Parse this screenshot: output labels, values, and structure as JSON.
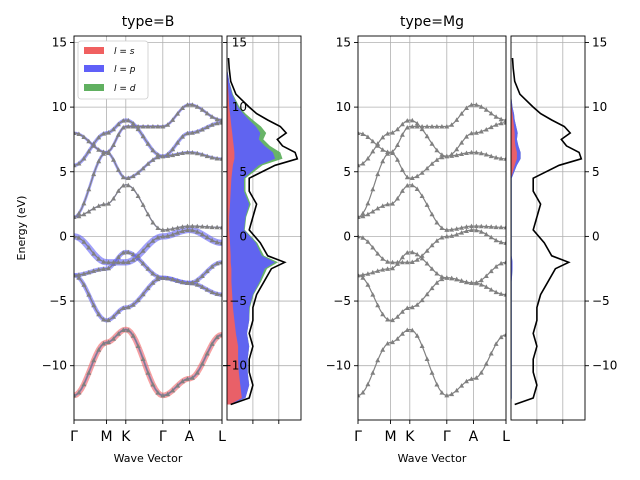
{
  "chart_data": {
    "type": "line",
    "ylabel": "Energy (eV)",
    "xlabel": "Wave Vector",
    "ylim": [
      -14.2,
      15.5
    ],
    "yticks": [
      -10,
      -5,
      0,
      5,
      10,
      15
    ],
    "ytick_labels": [
      "−10",
      "−5",
      "0",
      "5",
      "10",
      "15"
    ],
    "kpath_labels": [
      "Γ",
      "M",
      "K",
      "Γ",
      "A",
      "L"
    ],
    "kpath_positions": [
      0,
      0.22,
      0.35,
      0.6,
      0.78,
      1.0
    ],
    "grid": true,
    "legend_position": "upper-left",
    "legend": [
      {
        "label": "l = s",
        "color": "#f06060"
      },
      {
        "label": "l = p",
        "color": "#6060f8"
      },
      {
        "label": "l = d",
        "color": "#60b060"
      }
    ],
    "band_color": "#808080",
    "dos_line_color": "#000000",
    "panels": [
      {
        "title": "type=B",
        "bands": [
          {
            "k": [
              0,
              0.22,
              0.35,
              0.6,
              0.78,
              1.0
            ],
            "e": [
              -12.3,
              -8.2,
              -7.2,
              -12.3,
              -11.0,
              -7.6
            ],
            "weights": {
              "s": 0.8,
              "p": 0.3,
              "d": 0
            }
          },
          {
            "k": [
              0,
              0.22,
              0.35,
              0.6,
              0.78,
              1.0
            ],
            "e": [
              -3.0,
              -6.5,
              -5.5,
              -3.2,
              -3.6,
              -4.5
            ],
            "weights": {
              "s": 0.2,
              "p": 0.6,
              "d": 0
            }
          },
          {
            "k": [
              0,
              0.22,
              0.35,
              0.6,
              0.78,
              1.0
            ],
            "e": [
              -3.0,
              -2.5,
              -1.2,
              -3.2,
              -3.6,
              -2.0
            ],
            "weights": {
              "s": 0.1,
              "p": 0.6,
              "d": 0
            }
          },
          {
            "k": [
              0,
              0.22,
              0.35,
              0.6,
              0.78,
              1.0
            ],
            "e": [
              0,
              -2.0,
              -2.0,
              0,
              0.5,
              -0.5
            ],
            "weights": {
              "s": 0.1,
              "p": 0.9,
              "d": 0
            }
          },
          {
            "k": [
              0,
              0.22,
              0.35,
              0.6,
              0.78,
              1.0
            ],
            "e": [
              1.5,
              2.5,
              4.0,
              0.5,
              0.8,
              0.7
            ],
            "weights": {
              "s": 0,
              "p": 0.2,
              "d": 0
            }
          },
          {
            "k": [
              0,
              0.22,
              0.35,
              0.6,
              0.78,
              1.0
            ],
            "e": [
              1.5,
              6.5,
              4.5,
              6.2,
              6.5,
              6.0
            ],
            "weights": {
              "s": 0,
              "p": 0.4,
              "d": 0
            }
          },
          {
            "k": [
              0,
              0.22,
              0.35,
              0.6,
              0.78,
              1.0
            ],
            "e": [
              5.5,
              8.0,
              9.0,
              6.2,
              8.0,
              8.8
            ],
            "weights": {
              "s": 0.1,
              "p": 0.5,
              "d": 0.1
            }
          },
          {
            "k": [
              0,
              0.22,
              0.35,
              0.6,
              0.78,
              1.0
            ],
            "e": [
              8.0,
              6.5,
              8.5,
              8.5,
              10.2,
              9.0
            ],
            "weights": {
              "s": 0.2,
              "p": 0.4,
              "d": 0.1
            }
          }
        ],
        "dos": {
          "e": [
            -13.0,
            -12.5,
            -11.5,
            -10.5,
            -9.5,
            -8.5,
            -7.5,
            -6.5,
            -5.5,
            -4.5,
            -3.5,
            -2.5,
            -2.0,
            -1.5,
            -0.5,
            0.5,
            1.5,
            2.5,
            3.5,
            4.5,
            5.5,
            6.0,
            6.5,
            7.0,
            7.5,
            8.0,
            8.5,
            9.0,
            9.5,
            10.0,
            11.0,
            12.0,
            13.0,
            13.8
          ],
          "total": [
            0.05,
            0.3,
            0.35,
            0.3,
            0.3,
            0.35,
            0.3,
            0.35,
            0.35,
            0.4,
            0.5,
            0.6,
            0.78,
            0.55,
            0.45,
            0.3,
            0.35,
            0.4,
            0.3,
            0.3,
            0.65,
            0.95,
            0.92,
            0.75,
            0.68,
            0.8,
            0.72,
            0.55,
            0.4,
            0.3,
            0.12,
            0.05,
            0.03,
            0.02
          ],
          "s": [
            0.04,
            0.2,
            0.18,
            0.16,
            0.15,
            0.15,
            0.12,
            0.1,
            0.08,
            0.07,
            0.06,
            0.06,
            0.05,
            0.05,
            0.04,
            0.03,
            0.03,
            0.04,
            0.05,
            0.06,
            0.08,
            0.1,
            0.1,
            0.09,
            0.08,
            0.07,
            0.06,
            0.05,
            0.04,
            0.03,
            0.02,
            0.01,
            0.0,
            0.0
          ],
          "p": [
            0.0,
            0.05,
            0.12,
            0.12,
            0.13,
            0.15,
            0.15,
            0.2,
            0.22,
            0.28,
            0.38,
            0.45,
            0.6,
            0.42,
            0.35,
            0.2,
            0.22,
            0.26,
            0.18,
            0.17,
            0.35,
            0.55,
            0.52,
            0.42,
            0.35,
            0.38,
            0.33,
            0.25,
            0.18,
            0.12,
            0.05,
            0.02,
            0.0,
            0.0
          ],
          "d": [
            0.0,
            0.0,
            0.0,
            0.0,
            0.0,
            0.0,
            0.0,
            0.0,
            0.01,
            0.01,
            0.02,
            0.03,
            0.04,
            0.03,
            0.02,
            0.01,
            0.01,
            0.02,
            0.02,
            0.02,
            0.05,
            0.1,
            0.1,
            0.07,
            0.06,
            0.08,
            0.07,
            0.05,
            0.03,
            0.02,
            0.01,
            0.0,
            0.0,
            0.0
          ]
        }
      },
      {
        "title": "type=Mg",
        "bands": [
          {
            "k": [
              0,
              0.22,
              0.35,
              0.6,
              0.78,
              1.0
            ],
            "e": [
              -12.3,
              -8.2,
              -7.2,
              -12.3,
              -11.0,
              -7.6
            ],
            "weights": {
              "s": 0,
              "p": 0,
              "d": 0
            }
          },
          {
            "k": [
              0,
              0.22,
              0.35,
              0.6,
              0.78,
              1.0
            ],
            "e": [
              -3.0,
              -6.5,
              -5.5,
              -3.2,
              -3.6,
              -4.5
            ],
            "weights": {
              "s": 0,
              "p": 0,
              "d": 0
            }
          },
          {
            "k": [
              0,
              0.22,
              0.35,
              0.6,
              0.78,
              1.0
            ],
            "e": [
              -3.0,
              -2.5,
              -1.2,
              -3.2,
              -3.6,
              -2.0
            ],
            "weights": {
              "s": 0,
              "p": 0,
              "d": 0
            }
          },
          {
            "k": [
              0,
              0.22,
              0.35,
              0.6,
              0.78,
              1.0
            ],
            "e": [
              0,
              -2.0,
              -2.0,
              0,
              0.5,
              -0.5
            ],
            "weights": {
              "s": 0,
              "p": 0,
              "d": 0
            }
          },
          {
            "k": [
              0,
              0.22,
              0.35,
              0.6,
              0.78,
              1.0
            ],
            "e": [
              1.5,
              2.5,
              4.0,
              0.5,
              0.8,
              0.7
            ],
            "weights": {
              "s": 0,
              "p": 0,
              "d": 0
            }
          },
          {
            "k": [
              0,
              0.22,
              0.35,
              0.6,
              0.78,
              1.0
            ],
            "e": [
              1.5,
              6.5,
              4.5,
              6.2,
              6.5,
              6.0
            ],
            "weights": {
              "s": 0,
              "p": 0,
              "d": 0
            }
          },
          {
            "k": [
              0,
              0.22,
              0.35,
              0.6,
              0.78,
              1.0
            ],
            "e": [
              5.5,
              8.0,
              9.0,
              6.2,
              8.0,
              8.8
            ],
            "weights": {
              "s": 0,
              "p": 0,
              "d": 0
            }
          },
          {
            "k": [
              0,
              0.22,
              0.35,
              0.6,
              0.78,
              1.0
            ],
            "e": [
              8.0,
              6.5,
              8.5,
              8.5,
              10.2,
              9.0
            ],
            "weights": {
              "s": 0,
              "p": 0,
              "d": 0
            }
          }
        ],
        "dos": {
          "e": [
            -13.0,
            -12.5,
            -11.5,
            -10.5,
            -9.5,
            -8.5,
            -7.5,
            -6.5,
            -5.5,
            -4.5,
            -3.5,
            -2.5,
            -2.0,
            -1.5,
            -0.5,
            0.5,
            1.5,
            2.5,
            3.5,
            4.5,
            5.5,
            6.0,
            6.5,
            7.0,
            7.5,
            8.0,
            8.5,
            9.0,
            9.5,
            10.0,
            11.0,
            12.0,
            13.0,
            13.8
          ],
          "total": [
            0.05,
            0.3,
            0.35,
            0.3,
            0.3,
            0.35,
            0.3,
            0.35,
            0.35,
            0.4,
            0.5,
            0.6,
            0.78,
            0.55,
            0.45,
            0.3,
            0.35,
            0.4,
            0.3,
            0.3,
            0.65,
            0.95,
            0.92,
            0.75,
            0.68,
            0.8,
            0.72,
            0.55,
            0.4,
            0.3,
            0.12,
            0.05,
            0.03,
            0.02
          ],
          "s": [
            0,
            0,
            0,
            0,
            0,
            0,
            0,
            0,
            0,
            0,
            0,
            0,
            0,
            0,
            0,
            0,
            0,
            0,
            0,
            0,
            0.05,
            0.08,
            0.08,
            0.06,
            0.05,
            0.05,
            0.04,
            0.03,
            0.02,
            0.01,
            0,
            0,
            0,
            0
          ],
          "p": [
            0,
            0.01,
            0.01,
            0.01,
            0.01,
            0.01,
            0.01,
            0.01,
            0.01,
            0.01,
            0.01,
            0.02,
            0.02,
            0.01,
            0.01,
            0.01,
            0.01,
            0.01,
            0.01,
            0.01,
            0.03,
            0.05,
            0.05,
            0.04,
            0.03,
            0.04,
            0.03,
            0.02,
            0.02,
            0.01,
            0,
            0,
            0,
            0
          ],
          "d": [
            0,
            0,
            0,
            0,
            0,
            0,
            0,
            0,
            0,
            0,
            0,
            0,
            0,
            0,
            0,
            0,
            0,
            0,
            0,
            0,
            0,
            0,
            0,
            0,
            0,
            0,
            0,
            0,
            0,
            0,
            0,
            0,
            0,
            0
          ]
        }
      }
    ]
  }
}
